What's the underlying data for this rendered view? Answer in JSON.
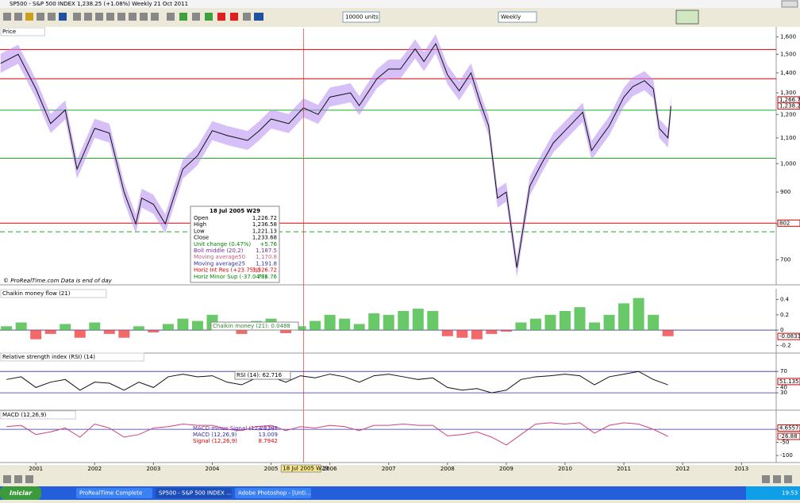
{
  "window_title": "SP500 - S&P 500 INDEX    1,238.25 (+1.08%)    Weekly  21 Oct 2011",
  "toolbar": {
    "units": "10000 units",
    "period": "Weekly"
  },
  "footer": "© ProRealTime.com  Data is end of day",
  "info_box": {
    "title": "18 Jul 2005 W29",
    "rows": [
      {
        "label": "Open",
        "value": "1,226.72",
        "color": "#000000"
      },
      {
        "label": "High",
        "value": "1,236.58",
        "color": "#000000"
      },
      {
        "label": "Low",
        "value": "1,221.13",
        "color": "#000000"
      },
      {
        "label": "Close",
        "value": "1,233.68",
        "color": "#000000"
      },
      {
        "label": "Unit change (0.47%)",
        "value": "+5.76",
        "color": "#008800"
      },
      {
        "label": "Boll middle (20,2)",
        "value": "1,187.5",
        "color": "#7030a0"
      },
      {
        "label": "Moving average50",
        "value": "1,170.8",
        "color": "#c06080"
      },
      {
        "label": "Moving average25",
        "value": "1,191.8",
        "color": "#3030a0"
      },
      {
        "label": "Horiz Int Res (+23.75%)",
        "value": "1,526.72",
        "color": "#dd0000"
      },
      {
        "label": "Horiz Minor Sup (-37.04%)",
        "value": "776.76",
        "color": "#008800"
      }
    ]
  },
  "chart_data": [
    {
      "type": "line",
      "title": "Price",
      "color": "#111111",
      "band_color": "#b58cf0",
      "log_scale": true,
      "xlim": [
        2000.39,
        2013.59
      ],
      "ylim": [
        640,
        1650
      ],
      "yticks": [
        {
          "value": 1600,
          "label": "1,600"
        },
        {
          "value": 1500,
          "label": "1,500"
        },
        {
          "value": 1400,
          "label": "1,400"
        },
        {
          "value": 1300,
          "label": "1,300"
        },
        {
          "value": 1200,
          "label": "1,200"
        },
        {
          "value": 1100,
          "label": "1,100"
        },
        {
          "value": 1000,
          "label": "1,000"
        },
        900,
        800,
        700
      ],
      "x": [
        2000.4,
        2000.7,
        2001.0,
        2001.25,
        2001.5,
        2001.7,
        2002.0,
        2002.25,
        2002.5,
        2002.7,
        2002.8,
        2003.0,
        2003.2,
        2003.5,
        2003.75,
        2004.0,
        2004.25,
        2004.6,
        2004.8,
        2005.0,
        2005.3,
        2005.55,
        2005.8,
        2006.0,
        2006.35,
        2006.5,
        2006.8,
        2007.0,
        2007.2,
        2007.45,
        2007.6,
        2007.8,
        2008.0,
        2008.2,
        2008.4,
        2008.55,
        2008.7,
        2008.85,
        2009.0,
        2009.18,
        2009.4,
        2009.6,
        2009.8,
        2010.0,
        2010.3,
        2010.45,
        2010.6,
        2010.75,
        2011.0,
        2011.15,
        2011.35,
        2011.5,
        2011.6,
        2011.75,
        2011.8
      ],
      "values": [
        1450,
        1500,
        1320,
        1160,
        1220,
        980,
        1140,
        1120,
        900,
        800,
        880,
        860,
        800,
        980,
        1030,
        1130,
        1110,
        1090,
        1130,
        1180,
        1160,
        1230,
        1200,
        1280,
        1300,
        1240,
        1370,
        1420,
        1420,
        1530,
        1460,
        1560,
        1390,
        1310,
        1400,
        1260,
        1150,
        880,
        900,
        680,
        920,
        1000,
        1080,
        1130,
        1210,
        1050,
        1100,
        1150,
        1280,
        1330,
        1360,
        1320,
        1140,
        1100,
        1238
      ],
      "hlines": [
        {
          "value": 1526.72,
          "color": "#e00000"
        },
        {
          "value": 1370,
          "color": "#e00000"
        },
        {
          "value": 1219,
          "color": "#22aa22"
        },
        {
          "value": 1020,
          "color": "#22aa22"
        },
        {
          "value": 802,
          "color": "#e00000"
        },
        {
          "value": 776.76,
          "color": "#22aa22",
          "dash": true
        }
      ],
      "price_labels": [
        {
          "value": 1266.7,
          "label": "1,266.7"
        },
        {
          "value": 1238.25,
          "label": "1,238.25"
        },
        802
      ],
      "cursor": {
        "value": 2005.55,
        "label": "18 Jul 2005 W29"
      }
    },
    {
      "type": "bar",
      "title": "Chaikin money flow (21)",
      "annotation": "Chaikin money (21): 0.0488",
      "positive_color": "#44bb44",
      "negative_color": "#ee4444",
      "xlim": [
        2000.39,
        2013.59
      ],
      "ylim": [
        -0.29,
        0.52
      ],
      "yticks": [
        0.4,
        0.2,
        0,
        -0.2
      ],
      "last_label": -0.0833,
      "x": [
        2000.5,
        2000.75,
        2001,
        2001.25,
        2001.5,
        2001.75,
        2002,
        2002.25,
        2002.5,
        2002.75,
        2003,
        2003.25,
        2003.5,
        2003.75,
        2004,
        2004.25,
        2004.5,
        2004.75,
        2005,
        2005.25,
        2005.5,
        2005.75,
        2006,
        2006.25,
        2006.5,
        2006.75,
        2007,
        2007.25,
        2007.5,
        2007.75,
        2008,
        2008.25,
        2008.5,
        2008.75,
        2009,
        2009.25,
        2009.5,
        2009.75,
        2010,
        2010.25,
        2010.5,
        2010.75,
        2011,
        2011.25,
        2011.5,
        2011.75
      ],
      "values": [
        0.05,
        0.1,
        -0.12,
        -0.05,
        0.08,
        -0.1,
        0.1,
        -0.05,
        -0.1,
        0.05,
        -0.03,
        0.08,
        0.15,
        0.12,
        0.2,
        0.1,
        -0.05,
        0.12,
        0.15,
        -0.04,
        0.05,
        0.12,
        0.2,
        0.15,
        0.08,
        0.22,
        0.2,
        0.25,
        0.28,
        0.25,
        -0.08,
        -0.1,
        -0.12,
        -0.05,
        -0.02,
        0.1,
        0.15,
        0.2,
        0.25,
        0.3,
        0.1,
        0.2,
        0.35,
        0.42,
        0.2,
        -0.08
      ]
    },
    {
      "type": "line",
      "title": "Relative strength index (RSI) (14)",
      "annotation": "RSI (14): 62.716",
      "color": "#111111",
      "xlim": [
        2000.39,
        2013.59
      ],
      "ylim": [
        -1,
        103
      ],
      "yticks": [
        70,
        40,
        30
      ],
      "last_label": 51.135,
      "x": [
        2000.5,
        2000.75,
        2001,
        2001.25,
        2001.5,
        2001.75,
        2002,
        2002.25,
        2002.5,
        2002.75,
        2003,
        2003.25,
        2003.5,
        2003.75,
        2004,
        2004.25,
        2004.5,
        2004.75,
        2005,
        2005.25,
        2005.5,
        2005.75,
        2006,
        2006.25,
        2006.5,
        2006.75,
        2007,
        2007.25,
        2007.5,
        2007.75,
        2008,
        2008.25,
        2008.5,
        2008.75,
        2009,
        2009.25,
        2009.5,
        2009.75,
        2010,
        2010.25,
        2010.5,
        2010.75,
        2011,
        2011.25,
        2011.5,
        2011.75
      ],
      "values": [
        55,
        60,
        40,
        50,
        55,
        35,
        50,
        48,
        35,
        50,
        40,
        60,
        65,
        60,
        62,
        50,
        45,
        58,
        60,
        50,
        62,
        58,
        65,
        60,
        50,
        62,
        65,
        60,
        55,
        58,
        40,
        35,
        38,
        30,
        35,
        55,
        60,
        62,
        65,
        62,
        45,
        60,
        65,
        70,
        55,
        45
      ]
    },
    {
      "type": "line",
      "title": "MACD (12,26,9)",
      "color": "#d04080",
      "xlim": [
        2000.39,
        2013.59
      ],
      "ylim": [
        -124,
        67
      ],
      "yticks": [
        0,
        -50,
        -100
      ],
      "last_labels": [
        4.6557,
        -26.88
      ],
      "xticks": [
        2001,
        2002,
        2003,
        2004,
        2005,
        2006,
        2007,
        2008,
        2009,
        2010,
        2011,
        2012,
        2013
      ],
      "rows": [
        {
          "label": "MACD minus Signal (12,26,9)",
          "value": "4.2148",
          "color": "#7030a0"
        },
        {
          "label": "MACD (12,26,9)",
          "value": "13.009",
          "color": "#3030a0"
        },
        {
          "label": "Signal (12,26,9)",
          "value": "8.7942",
          "color": "#dd0000"
        }
      ],
      "x": [
        2000.5,
        2000.75,
        2001,
        2001.25,
        2001.5,
        2001.75,
        2002,
        2002.25,
        2002.5,
        2002.75,
        2003,
        2003.25,
        2003.5,
        2003.75,
        2004,
        2004.25,
        2004.5,
        2004.75,
        2005,
        2005.25,
        2005.5,
        2005.75,
        2006,
        2006.25,
        2006.5,
        2006.75,
        2007,
        2007.25,
        2007.5,
        2007.75,
        2008,
        2008.25,
        2008.5,
        2008.75,
        2009,
        2009.25,
        2009.5,
        2009.75,
        2010,
        2010.25,
        2010.5,
        2010.75,
        2011,
        2011.25,
        2011.5,
        2011.75
      ],
      "values": [
        10,
        15,
        -20,
        -10,
        5,
        -30,
        20,
        5,
        -30,
        -20,
        5,
        10,
        20,
        15,
        15,
        0,
        -5,
        10,
        15,
        -5,
        10,
        5,
        15,
        10,
        -5,
        15,
        15,
        20,
        15,
        15,
        -25,
        -20,
        -10,
        -30,
        -60,
        -20,
        20,
        25,
        20,
        25,
        -15,
        15,
        25,
        20,
        0,
        -27
      ]
    }
  ],
  "taskbar": {
    "start": "Iniciar",
    "items": [
      "ProRealTime Complete",
      "SP500 - S&P 500 INDEX ...",
      "Adobe Photoshop - [Unti..."
    ],
    "clock": "19:53"
  }
}
